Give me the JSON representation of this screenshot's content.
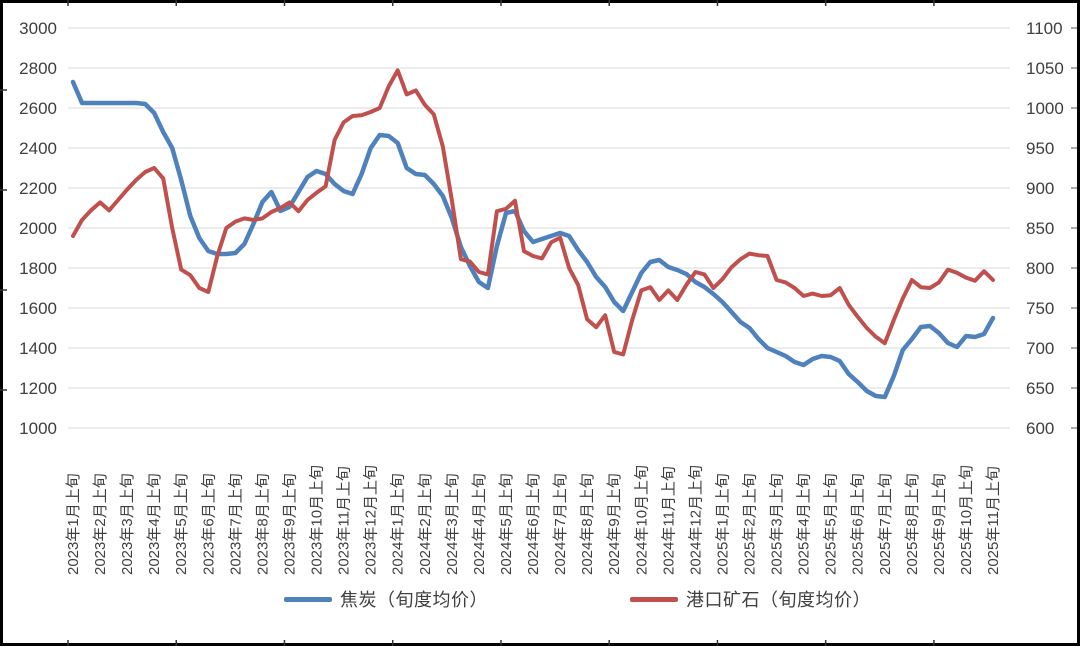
{
  "figure": {
    "background": "#ffffff",
    "border_color": "#000000",
    "text_color": "#3f3f3f",
    "gridline_color": "#d9d9d9"
  },
  "chart_data": {
    "type": "line",
    "title": "",
    "grid": {
      "horizontal": true,
      "vertical": false,
      "color": "#d9d9d9"
    },
    "legend_position": "bottom",
    "x_axis": {
      "points_per_label": 3,
      "tick_labels": [
        "2023年1月上旬",
        "2023年2月上旬",
        "2023年3月上旬",
        "2023年4月上旬",
        "2023年5月上旬",
        "2023年6月上旬",
        "2023年7月上旬",
        "2023年8月上旬",
        "2023年9月上旬",
        "2023年10月上旬",
        "2023年11月上旬",
        "2023年12月上旬",
        "2024年1月上旬",
        "2024年2月上旬",
        "2024年3月上旬",
        "2024年4月上旬",
        "2024年5月上旬",
        "2024年6月上旬",
        "2024年7月上旬",
        "2024年8月上旬",
        "2024年9月上旬",
        "2024年10月上旬",
        "2024年11月上旬",
        "2024年12月上旬",
        "2025年1月上旬",
        "2025年2月上旬",
        "2025年3月上旬",
        "2025年4月上旬",
        "2025年5月上旬",
        "2025年6月上旬",
        "2025年7月上旬",
        "2025年8月上旬",
        "2025年9月上旬",
        "2025年10月上旬",
        "2025年11月上旬"
      ]
    },
    "left_axis": {
      "min": 1000,
      "max": 3000,
      "step": 200,
      "tick_labels": [
        "3000",
        "2800",
        "2600",
        "2400",
        "2200",
        "2000",
        "1800",
        "1600",
        "1400",
        "1200",
        "1000"
      ]
    },
    "right_axis": {
      "min": 600,
      "max": 1100,
      "step": 50,
      "tick_labels": [
        "1100",
        "1050",
        "1000",
        "950",
        "900",
        "850",
        "800",
        "750",
        "700",
        "650",
        "600"
      ]
    },
    "series": [
      {
        "name": "焦炭（旬度均价）",
        "axis": "left",
        "color": "#4f81bd",
        "line_width": 4.5,
        "values": [
          2730,
          2625,
          2625,
          2625,
          2625,
          2625,
          2625,
          2625,
          2620,
          2575,
          2480,
          2400,
          2240,
          2060,
          1950,
          1885,
          1870,
          1870,
          1875,
          1920,
          2020,
          2130,
          2180,
          2085,
          2105,
          2180,
          2255,
          2285,
          2270,
          2220,
          2185,
          2170,
          2270,
          2400,
          2465,
          2460,
          2425,
          2300,
          2270,
          2265,
          2220,
          2160,
          2050,
          1905,
          1810,
          1730,
          1700,
          1910,
          2075,
          2085,
          1985,
          1930,
          1945,
          1960,
          1975,
          1960,
          1890,
          1830,
          1755,
          1705,
          1630,
          1585,
          1680,
          1775,
          1830,
          1840,
          1805,
          1790,
          1770,
          1730,
          1705,
          1670,
          1630,
          1580,
          1530,
          1500,
          1445,
          1400,
          1380,
          1360,
          1330,
          1315,
          1345,
          1360,
          1355,
          1335,
          1270,
          1230,
          1185,
          1160,
          1155,
          1260,
          1390,
          1445,
          1505,
          1510,
          1475,
          1425,
          1405,
          1460,
          1455,
          1470,
          1550
        ]
      },
      {
        "name": "港口矿石（旬度均价）",
        "axis": "right",
        "color": "#c0504d",
        "line_width": 4,
        "values": [
          840,
          860,
          872,
          882,
          872,
          885,
          898,
          910,
          920,
          925,
          912,
          850,
          798,
          791,
          775,
          770,
          815,
          850,
          858,
          862,
          860,
          862,
          870,
          875,
          882,
          871,
          885,
          894,
          902,
          960,
          982,
          990,
          991,
          995,
          1000,
          1027,
          1047,
          1017,
          1022,
          1004,
          992,
          952,
          885,
          811,
          808,
          795,
          792,
          871,
          874,
          884,
          821,
          815,
          812,
          832,
          838,
          800,
          779,
          736,
          726,
          741,
          695,
          692,
          735,
          772,
          776,
          760,
          772,
          760,
          779,
          795,
          792,
          775,
          786,
          801,
          811,
          818,
          816,
          815,
          785,
          782,
          775,
          765,
          768,
          765,
          766,
          775,
          754,
          739,
          725,
          714,
          706,
          735,
          762,
          785,
          776,
          775,
          782,
          798,
          794,
          788,
          784,
          796,
          785
        ]
      }
    ]
  }
}
